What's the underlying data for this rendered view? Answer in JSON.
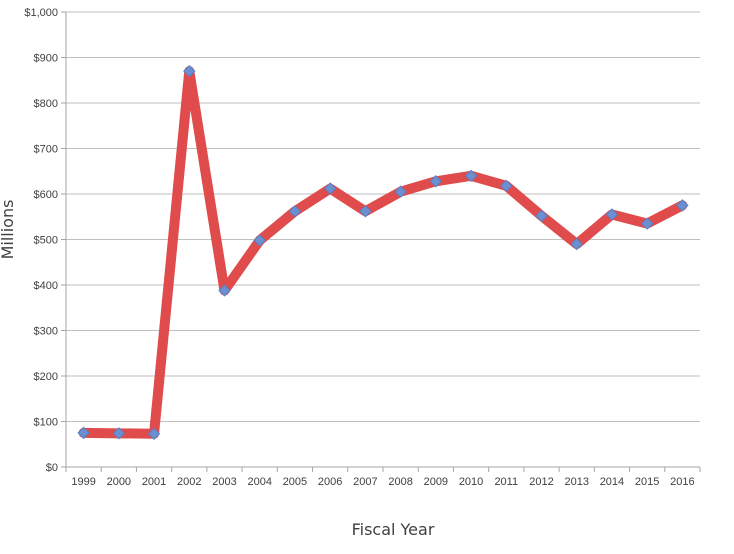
{
  "chart_data": {
    "type": "line",
    "title": "",
    "xlabel": "Fiscal Year",
    "ylabel": "Millions",
    "ylim": [
      0,
      1000
    ],
    "yticks": [
      0,
      100,
      200,
      300,
      400,
      500,
      600,
      700,
      800,
      900,
      1000
    ],
    "ytick_labels": [
      "$0",
      "$100",
      "$200",
      "$300",
      "$400",
      "$500",
      "$600",
      "$700",
      "$800",
      "$900",
      "$1,000"
    ],
    "grid": true,
    "legend": "none",
    "categories": [
      "1999",
      "2000",
      "2001",
      "2002",
      "2003",
      "2004",
      "2005",
      "2006",
      "2007",
      "2008",
      "2009",
      "2010",
      "2011",
      "2012",
      "2013",
      "2014",
      "2015",
      "2016"
    ],
    "series": [
      {
        "values": [
          75,
          74,
          73,
          870,
          388,
          498,
          562,
          612,
          562,
          605,
          628,
          640,
          618,
          552,
          490,
          555,
          535,
          575
        ],
        "line_color": "#e04b4b",
        "marker_color": "#6b8fd1"
      }
    ]
  }
}
